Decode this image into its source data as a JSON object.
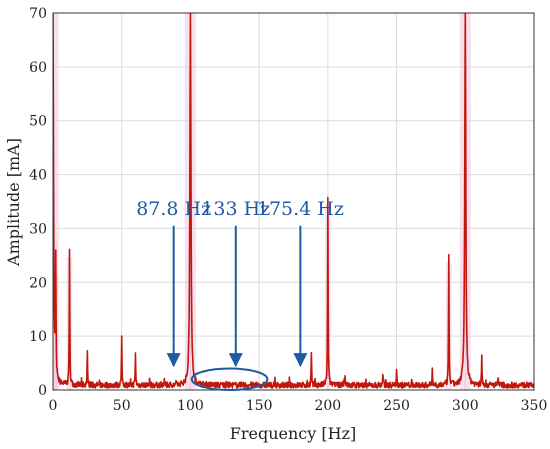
{
  "chart_data": {
    "type": "line",
    "title": "",
    "xlabel": "Frequency [Hz]",
    "ylabel": "Amplitude [mA]",
    "xlim": [
      0,
      350
    ],
    "ylim": [
      0,
      70
    ],
    "xticks": [
      "0",
      "50",
      "100",
      "150",
      "200",
      "250",
      "300",
      "350"
    ],
    "yticks": [
      "0",
      "10",
      "20",
      "30",
      "40",
      "50",
      "60",
      "70"
    ],
    "grid": true,
    "legend": "none",
    "line_color": "#c0180c",
    "spectrum_shade_color": "#f2b8dc",
    "annotation_color": "#1f5aa6",
    "noise_floor_mA": 1.0,
    "peaks": [
      {
        "x": 0,
        "y": 70
      },
      {
        "x": 2,
        "y": 21.5
      },
      {
        "x": 12,
        "y": 24.7
      },
      {
        "x": 25,
        "y": 5.9
      },
      {
        "x": 50,
        "y": 8.6
      },
      {
        "x": 60,
        "y": 5.7
      },
      {
        "x": 100,
        "y": 70
      },
      {
        "x": 188,
        "y": 6.1
      },
      {
        "x": 200,
        "y": 34.5
      },
      {
        "x": 212,
        "y": 1.8
      },
      {
        "x": 240,
        "y": 2.2
      },
      {
        "x": 250,
        "y": 2.4
      },
      {
        "x": 276,
        "y": 3.0
      },
      {
        "x": 288,
        "y": 23.7
      },
      {
        "x": 300,
        "y": 70
      },
      {
        "x": 312,
        "y": 5.1
      },
      {
        "x": 324,
        "y": 1.4
      }
    ],
    "annotations": [
      {
        "label": "87.8 Hz",
        "x": 87.8,
        "text_y": 32.5,
        "arrow_from_y": 30.5,
        "arrow_to_y": 4.5
      },
      {
        "label": "133 Hz",
        "x": 133,
        "text_y": 32.5,
        "arrow_from_y": 30.5,
        "arrow_to_y": 4.5
      },
      {
        "label": "175.4 Hz",
        "x": 180,
        "text_y": 32.5,
        "arrow_from_y": 30.5,
        "arrow_to_y": 4.5
      }
    ],
    "highlight_ellipse": {
      "x_range": [
        101,
        156
      ],
      "y_range": [
        0,
        4
      ]
    }
  }
}
